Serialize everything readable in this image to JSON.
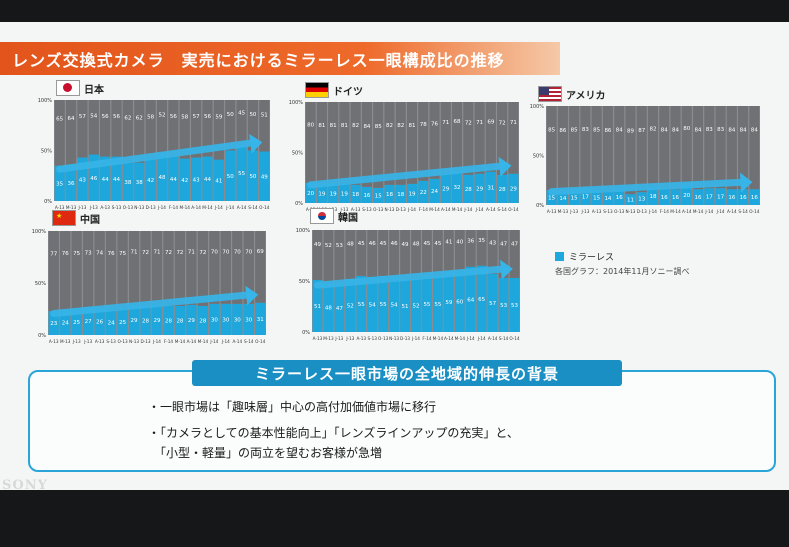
{
  "title": "レンズ交換式カメラ　実売におけるミラーレス一眼構成比の推移",
  "legend": {
    "label": "ミラーレス",
    "color": "#1ea7dc"
  },
  "source_note": "各国グラフ：2014年11月ソニー調べ",
  "colors": {
    "mirrorless": "#1ea7dc",
    "other": "#6f7175",
    "grid": "#8a8c90",
    "arrow": "#37b5e8"
  },
  "background_section": {
    "title": "ミラーレス一眼市場の全地域的伸長の背景",
    "bullets": [
      "・一眼市場は「趣味層」中心の高付加価値市場に移行",
      "・「カメラとしての基本性能向上」「レンズラインアップの充実」と、",
      "　「小型・軽量」の両立を望むお客様が急増"
    ]
  },
  "logo_text": "SONY",
  "chart_data": [
    {
      "type": "bar",
      "stacked": true,
      "country": "日本",
      "flag": "jp-flag-icon",
      "y_ticks": [
        "100%",
        "50%",
        "0%"
      ],
      "ylim": [
        0,
        100
      ],
      "categories": [
        "A-13",
        "M-13",
        "J-13",
        "J-13",
        "A-13",
        "S-13",
        "O-13",
        "N-13",
        "D-13",
        "J-14",
        "F-14",
        "M-14",
        "A-14",
        "M-14",
        "J-14",
        "J-14",
        "A-14",
        "S-14",
        "O-14"
      ],
      "series": [
        {
          "name": "ミラーレス",
          "values": [
            35,
            36,
            43,
            46,
            44,
            44,
            38,
            38,
            42,
            48,
            44,
            42,
            43,
            44,
            41,
            50,
            55,
            50,
            49
          ]
        },
        {
          "values": [
            65,
            64,
            57,
            54,
            56,
            56,
            62,
            62,
            58,
            52,
            56,
            58,
            57,
            56,
            59,
            50,
            45,
            50,
            51
          ]
        }
      ],
      "arrow_label": "51"
    },
    {
      "type": "bar",
      "stacked": true,
      "country": "ドイツ",
      "flag": "de-flag-icon",
      "y_ticks": [
        "100%",
        "50%",
        "0%"
      ],
      "ylim": [
        0,
        100
      ],
      "categories": [
        "A-13",
        "M-13",
        "J-13",
        "J-13",
        "A-13",
        "S-13",
        "O-13",
        "N-13",
        "D-13",
        "J-14",
        "F-14",
        "M-14",
        "A-14",
        "M-14",
        "J-14",
        "J-14",
        "A-14",
        "S-14",
        "O-14"
      ],
      "series": [
        {
          "name": "ミラーレス",
          "values": [
            20,
            19,
            19,
            19,
            18,
            16,
            15,
            18,
            18,
            19,
            22,
            24,
            29,
            32,
            28,
            29,
            31,
            28,
            29
          ]
        },
        {
          "values": [
            80,
            81,
            81,
            81,
            82,
            84,
            85,
            82,
            82,
            81,
            78,
            76,
            71,
            68,
            72,
            71,
            69,
            72,
            71
          ]
        }
      ]
    },
    {
      "type": "bar",
      "stacked": true,
      "country": "アメリカ",
      "flag": "us-flag-icon",
      "y_ticks": [
        "100%",
        "50%",
        "0%"
      ],
      "ylim": [
        0,
        100
      ],
      "categories": [
        "A-13",
        "M-13",
        "J-13",
        "J-13",
        "A-13",
        "S-13",
        "O-13",
        "N-13",
        "D-13",
        "J-14",
        "F-14",
        "M-14",
        "A-14",
        "M-14",
        "J-14",
        "J-14",
        "A-14",
        "S-14",
        "O-14"
      ],
      "series": [
        {
          "name": "ミラーレス",
          "values": [
            15,
            14,
            15,
            17,
            15,
            14,
            16,
            11,
            13,
            18,
            16,
            16,
            20,
            16,
            17,
            17,
            16,
            16,
            16
          ]
        },
        {
          "values": [
            85,
            86,
            85,
            83,
            85,
            86,
            84,
            89,
            87,
            82,
            84,
            84,
            80,
            84,
            83,
            83,
            84,
            84,
            84
          ]
        }
      ]
    },
    {
      "type": "bar",
      "stacked": true,
      "country": "中国",
      "flag": "cn-flag-icon",
      "y_ticks": [
        "100%",
        "50%",
        "0%"
      ],
      "ylim": [
        0,
        100
      ],
      "categories": [
        "A-13",
        "M-13",
        "J-13",
        "J-13",
        "A-13",
        "S-13",
        "O-13",
        "N-13",
        "D-13",
        "J-14",
        "F-14",
        "M-14",
        "A-14",
        "M-14",
        "J-14",
        "J-14",
        "A-14",
        "S-14",
        "O-14"
      ],
      "series": [
        {
          "name": "ミラーレス",
          "values": [
            23,
            24,
            25,
            27,
            26,
            24,
            25,
            29,
            28,
            29,
            28,
            28,
            29,
            28,
            30,
            30,
            30,
            30,
            31
          ]
        },
        {
          "values": [
            77,
            76,
            75,
            73,
            74,
            76,
            75,
            71,
            72,
            71,
            72,
            72,
            71,
            72,
            70,
            70,
            70,
            70,
            69
          ]
        }
      ],
      "arrow_label": "69"
    },
    {
      "type": "bar",
      "stacked": true,
      "country": "韓国",
      "flag": "kr-flag-icon",
      "y_ticks": [
        "100%",
        "50%",
        "0%"
      ],
      "ylim": [
        0,
        100
      ],
      "categories": [
        "A-13",
        "M-13",
        "J-13",
        "J-13",
        "A-13",
        "S-13",
        "O-13",
        "N-13",
        "D-13",
        "J-14",
        "F-14",
        "M-14",
        "A-14",
        "M-14",
        "J-14",
        "J-14",
        "A-14",
        "S-14",
        "O-14"
      ],
      "series": [
        {
          "name": "ミラーレス",
          "values": [
            51,
            48,
            47,
            52,
            55,
            54,
            55,
            54,
            51,
            52,
            55,
            55,
            59,
            60,
            64,
            65,
            57,
            53,
            53
          ]
        },
        {
          "values": [
            49,
            52,
            53,
            48,
            45,
            46,
            45,
            46,
            49,
            48,
            45,
            45,
            41,
            40,
            36,
            35,
            43,
            47,
            47
          ]
        }
      ],
      "arrow_label": "47"
    }
  ]
}
